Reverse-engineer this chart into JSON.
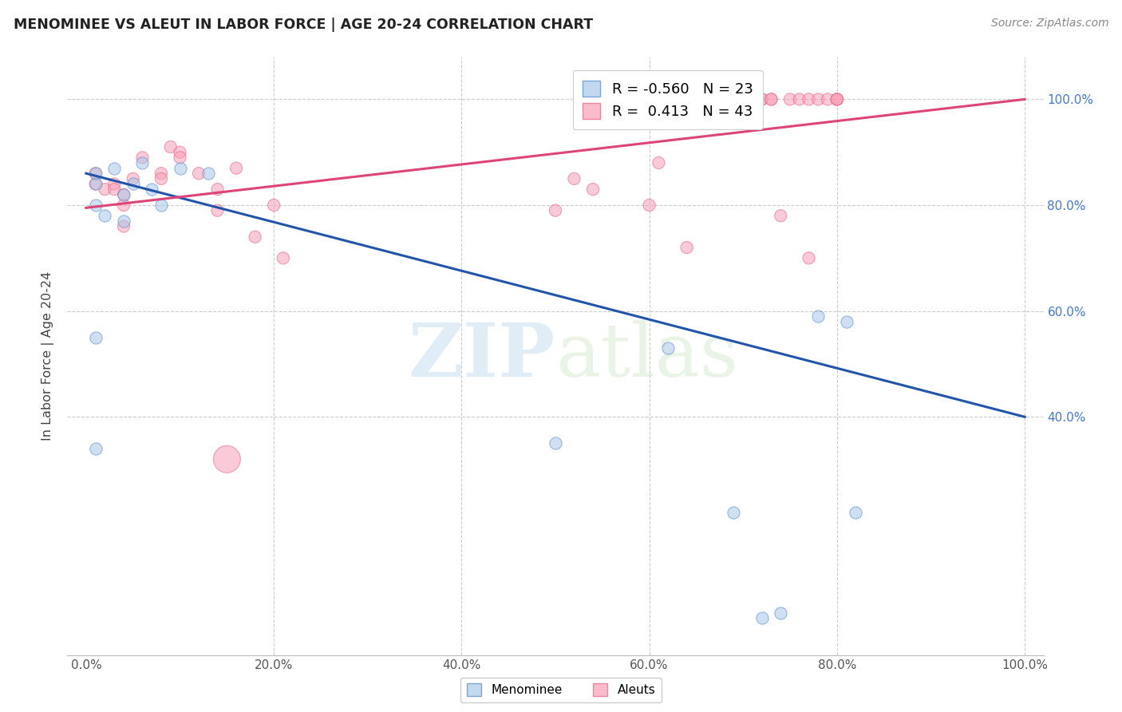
{
  "title": "MENOMINEE VS ALEUT IN LABOR FORCE | AGE 20-24 CORRELATION CHART",
  "source": "Source: ZipAtlas.com",
  "ylabel": "In Labor Force | Age 20-24",
  "xlim": [
    -0.02,
    1.02
  ],
  "ylim": [
    -0.05,
    1.08
  ],
  "menominee_r": -0.56,
  "menominee_n": 23,
  "aleuts_r": 0.413,
  "aleuts_n": 43,
  "menominee_color": "#a8c8e8",
  "aleuts_color": "#f8a0b8",
  "menominee_edge": "#5588cc",
  "aleuts_edge": "#e86080",
  "menominee_x": [
    0.01,
    0.01,
    0.01,
    0.01,
    0.02,
    0.03,
    0.04,
    0.04,
    0.05,
    0.06,
    0.07,
    0.08,
    0.1,
    0.13,
    0.01,
    0.62,
    0.69,
    0.72,
    0.74,
    0.78,
    0.5,
    0.81,
    0.82
  ],
  "menominee_y": [
    0.55,
    0.8,
    0.84,
    0.86,
    0.78,
    0.87,
    0.77,
    0.82,
    0.84,
    0.88,
    0.83,
    0.8,
    0.87,
    0.86,
    0.34,
    0.53,
    0.22,
    0.02,
    0.03,
    0.59,
    0.35,
    0.58,
    0.22
  ],
  "menominee_size": 120,
  "aleuts_x": [
    0.01,
    0.01,
    0.02,
    0.03,
    0.03,
    0.04,
    0.04,
    0.04,
    0.05,
    0.06,
    0.08,
    0.08,
    0.09,
    0.1,
    0.1,
    0.12,
    0.14,
    0.14,
    0.16,
    0.18,
    0.2,
    0.21,
    0.5,
    0.52,
    0.54,
    0.6,
    0.61,
    0.64,
    0.72,
    0.72,
    0.73,
    0.73,
    0.74,
    0.75,
    0.76,
    0.77,
    0.77,
    0.78,
    0.79,
    0.8,
    0.8,
    0.8,
    0.15
  ],
  "aleuts_y": [
    0.86,
    0.84,
    0.83,
    0.84,
    0.83,
    0.82,
    0.8,
    0.76,
    0.85,
    0.89,
    0.86,
    0.85,
    0.91,
    0.9,
    0.89,
    0.86,
    0.83,
    0.79,
    0.87,
    0.74,
    0.8,
    0.7,
    0.79,
    0.85,
    0.83,
    0.8,
    0.88,
    0.72,
    1.0,
    1.0,
    1.0,
    1.0,
    0.78,
    1.0,
    1.0,
    1.0,
    0.7,
    1.0,
    1.0,
    1.0,
    1.0,
    1.0,
    0.32
  ],
  "aleuts_sizes": [
    120,
    120,
    120,
    120,
    120,
    120,
    120,
    120,
    120,
    120,
    120,
    120,
    120,
    120,
    120,
    120,
    120,
    120,
    120,
    120,
    120,
    120,
    120,
    120,
    120,
    120,
    120,
    120,
    120,
    120,
    120,
    120,
    120,
    120,
    120,
    120,
    120,
    120,
    120,
    120,
    120,
    120,
    600
  ],
  "menominee_line_x": [
    0.0,
    1.0
  ],
  "menominee_line_y": [
    0.86,
    0.4
  ],
  "aleuts_line_x": [
    0.0,
    1.0
  ],
  "aleuts_line_y": [
    0.795,
    1.0
  ],
  "watermark_zip": "ZIP",
  "watermark_atlas": "atlas",
  "grid_yticks": [
    0.4,
    0.6,
    0.8,
    1.0
  ],
  "grid_xticks": [
    0.2,
    0.4,
    0.6,
    0.8,
    1.0
  ],
  "right_ylabels": [
    "40.0%",
    "60.0%",
    "80.0%",
    "100.0%"
  ],
  "xtick_labels": [
    "0.0%",
    "20.0%",
    "40.0%",
    "60.0%",
    "80.0%",
    "100.0%"
  ],
  "background_color": "#ffffff",
  "grid_color": "#cccccc"
}
